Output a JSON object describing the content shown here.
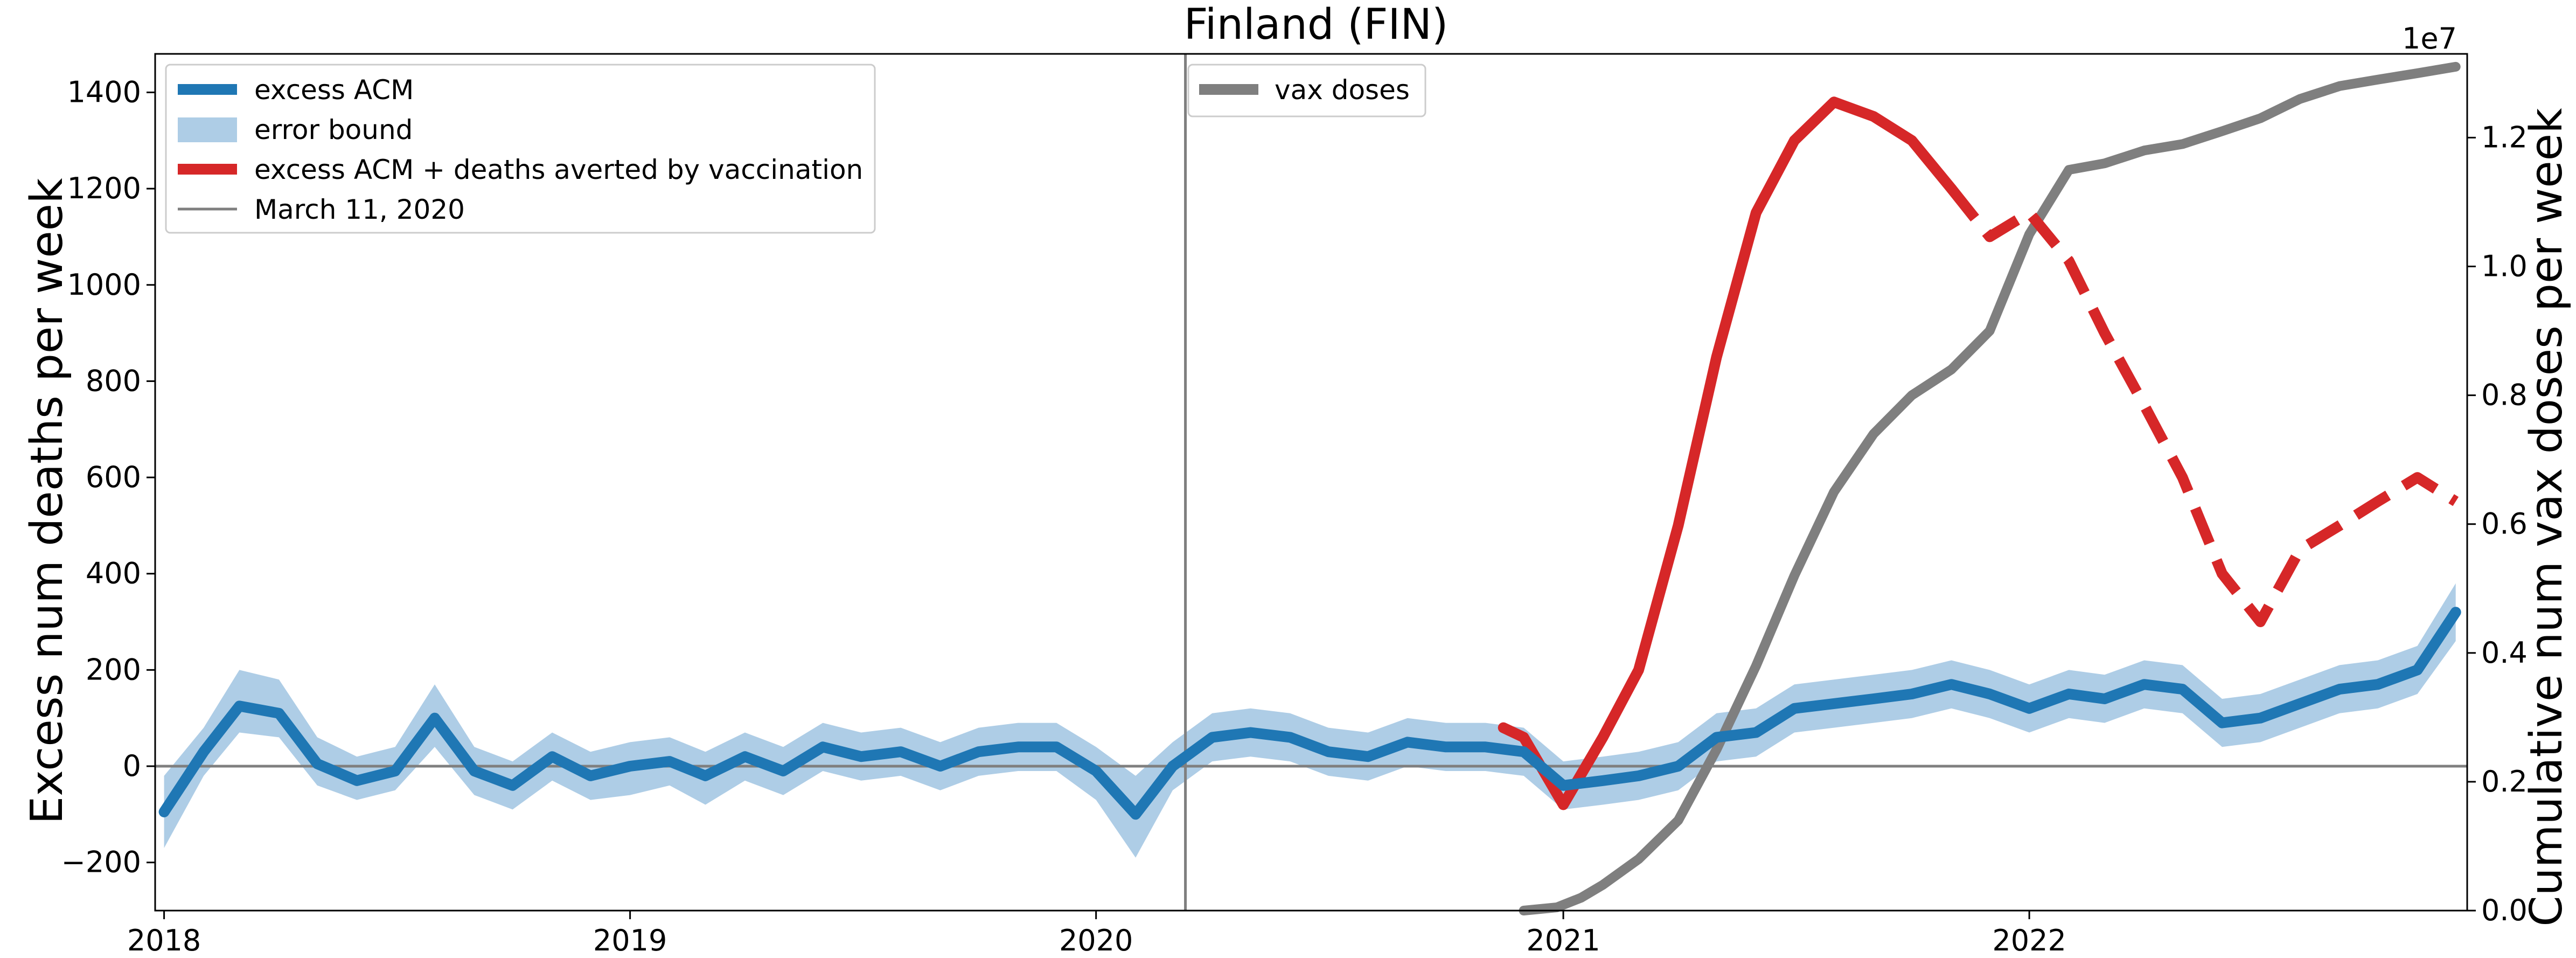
{
  "chart_data": {
    "type": "line",
    "title": "Finland (FIN)",
    "ylabel": "Excess num deaths per week",
    "y2label": "Cumulative num vax doses per week",
    "y2_offset_text": "1e7",
    "ylim": [
      -300,
      1480
    ],
    "y2lim": [
      0,
      1.33
    ],
    "yticks": [
      -200,
      0,
      200,
      400,
      600,
      800,
      1000,
      1200,
      1400
    ],
    "y2ticks": [
      0.0,
      0.2,
      0.4,
      0.6,
      0.8,
      1.0,
      1.2
    ],
    "xlim": [
      "2017-12-25",
      "2022-12-10"
    ],
    "xticks": [
      "2018",
      "2019",
      "2020",
      "2021",
      "2022"
    ],
    "reference_date": "2020-03-11",
    "zero_line": true,
    "legend_left_position": "upper-left",
    "legend_right_position": "upper-center",
    "legend": [
      {
        "label": "excess ACM",
        "kind": "line",
        "color": "#1f77b4"
      },
      {
        "label": "error bound",
        "kind": "band",
        "color": "#aecde6"
      },
      {
        "label": "excess ACM + deaths averted by vaccination",
        "kind": "line",
        "color": "#d62728"
      },
      {
        "label": "March 11, 2020",
        "kind": "thin",
        "color": "#7f7f7f"
      }
    ],
    "legend_vax": {
      "label": "vax doses",
      "kind": "line",
      "color": "#7f7f7f"
    },
    "series": [
      {
        "name": "excess ACM",
        "color": "#1f77b4",
        "x": [
          "2018-01-01",
          "2018-02-01",
          "2018-03-01",
          "2018-04-01",
          "2018-05-01",
          "2018-06-01",
          "2018-07-01",
          "2018-08-01",
          "2018-09-01",
          "2018-10-01",
          "2018-11-01",
          "2018-12-01",
          "2019-01-01",
          "2019-02-01",
          "2019-03-01",
          "2019-04-01",
          "2019-05-01",
          "2019-06-01",
          "2019-07-01",
          "2019-08-01",
          "2019-09-01",
          "2019-10-01",
          "2019-11-01",
          "2019-12-01",
          "2020-01-01",
          "2020-02-01",
          "2020-03-01",
          "2020-04-01",
          "2020-05-01",
          "2020-06-01",
          "2020-07-01",
          "2020-08-01",
          "2020-09-01",
          "2020-10-01",
          "2020-11-01",
          "2020-12-01",
          "2021-01-01",
          "2021-02-01",
          "2021-03-01",
          "2021-04-01",
          "2021-05-01",
          "2021-06-01",
          "2021-07-01",
          "2021-08-01",
          "2021-09-01",
          "2021-10-01",
          "2021-11-01",
          "2021-12-01",
          "2022-01-01",
          "2022-02-01",
          "2022-03-01",
          "2022-04-01",
          "2022-05-01",
          "2022-06-01",
          "2022-07-01",
          "2022-08-01",
          "2022-09-01",
          "2022-10-01",
          "2022-11-01",
          "2022-12-01"
        ],
        "values": [
          -95,
          30,
          125,
          110,
          5,
          -30,
          -10,
          100,
          -10,
          -40,
          20,
          -20,
          0,
          10,
          -20,
          20,
          -10,
          40,
          20,
          30,
          0,
          30,
          40,
          40,
          -10,
          -100,
          0,
          60,
          70,
          60,
          30,
          20,
          50,
          40,
          40,
          30,
          -40,
          -30,
          -20,
          0,
          60,
          70,
          120,
          130,
          140,
          150,
          170,
          150,
          120,
          150,
          140,
          170,
          160,
          90,
          100,
          130,
          160,
          170,
          200,
          320
        ]
      },
      {
        "name": "excess ACM + deaths averted by vaccination",
        "color": "#d62728",
        "x": [
          "2020-11-15",
          "2020-12-01",
          "2021-01-01",
          "2021-02-01",
          "2021-03-01",
          "2021-04-01",
          "2021-05-01",
          "2021-06-01",
          "2021-07-01",
          "2021-08-01",
          "2021-09-01",
          "2021-10-01",
          "2021-11-01",
          "2021-12-01",
          "2022-01-01",
          "2022-02-01",
          "2022-03-01",
          "2022-04-01",
          "2022-05-01",
          "2022-06-01",
          "2022-07-01",
          "2022-08-01",
          "2022-09-01",
          "2022-10-01",
          "2022-11-01",
          "2022-12-01"
        ],
        "values": [
          80,
          60,
          -80,
          60,
          200,
          500,
          850,
          1150,
          1300,
          1380,
          1350,
          1300,
          1200,
          1100,
          1150,
          1050,
          900,
          750,
          600,
          400,
          300,
          450,
          500,
          550,
          600,
          550
        ],
        "dashed_from": "2021-11-10"
      },
      {
        "name": "vax doses",
        "color": "#7f7f7f",
        "axis": "right",
        "x": [
          "2020-12-01",
          "2020-12-27",
          "2021-01-15",
          "2021-02-01",
          "2021-03-01",
          "2021-04-01",
          "2021-05-01",
          "2021-06-01",
          "2021-07-01",
          "2021-08-01",
          "2021-09-01",
          "2021-10-01",
          "2021-11-01",
          "2021-12-01",
          "2022-01-01",
          "2022-02-01",
          "2022-03-01",
          "2022-04-01",
          "2022-05-01",
          "2022-06-01",
          "2022-07-01",
          "2022-08-01",
          "2022-09-01",
          "2022-10-01",
          "2022-11-01",
          "2022-12-01"
        ],
        "values": [
          0.0,
          0.005,
          0.02,
          0.04,
          0.08,
          0.14,
          0.25,
          0.38,
          0.52,
          0.65,
          0.74,
          0.8,
          0.84,
          0.9,
          1.05,
          1.15,
          1.16,
          1.18,
          1.19,
          1.21,
          1.23,
          1.26,
          1.28,
          1.29,
          1.3,
          1.31
        ]
      }
    ],
    "error_band": {
      "name": "error bound",
      "color": "#aecde6",
      "x": [
        "2018-01-01",
        "2018-02-01",
        "2018-03-01",
        "2018-04-01",
        "2018-05-01",
        "2018-06-01",
        "2018-07-01",
        "2018-08-01",
        "2018-09-01",
        "2018-10-01",
        "2018-11-01",
        "2018-12-01",
        "2019-01-01",
        "2019-02-01",
        "2019-03-01",
        "2019-04-01",
        "2019-05-01",
        "2019-06-01",
        "2019-07-01",
        "2019-08-01",
        "2019-09-01",
        "2019-10-01",
        "2019-11-01",
        "2019-12-01",
        "2020-01-01",
        "2020-02-01",
        "2020-03-01",
        "2020-04-01",
        "2020-05-01",
        "2020-06-01",
        "2020-07-01",
        "2020-08-01",
        "2020-09-01",
        "2020-10-01",
        "2020-11-01",
        "2020-12-01",
        "2021-01-01",
        "2021-02-01",
        "2021-03-01",
        "2021-04-01",
        "2021-05-01",
        "2021-06-01",
        "2021-07-01",
        "2021-08-01",
        "2021-09-01",
        "2021-10-01",
        "2021-11-01",
        "2021-12-01",
        "2022-01-01",
        "2022-02-01",
        "2022-03-01",
        "2022-04-01",
        "2022-05-01",
        "2022-06-01",
        "2022-07-01",
        "2022-08-01",
        "2022-09-01",
        "2022-10-01",
        "2022-11-01",
        "2022-12-01"
      ],
      "lower": [
        -170,
        -20,
        70,
        60,
        -40,
        -70,
        -50,
        40,
        -60,
        -90,
        -30,
        -70,
        -60,
        -40,
        -80,
        -30,
        -60,
        -10,
        -30,
        -20,
        -50,
        -20,
        -10,
        -10,
        -70,
        -190,
        -50,
        10,
        20,
        10,
        -20,
        -30,
        0,
        -10,
        -10,
        -20,
        -90,
        -80,
        -70,
        -50,
        10,
        20,
        70,
        80,
        90,
        100,
        120,
        100,
        70,
        100,
        90,
        120,
        110,
        40,
        50,
        80,
        110,
        120,
        150,
        260
      ],
      "upper": [
        -20,
        80,
        200,
        180,
        60,
        20,
        40,
        170,
        40,
        10,
        70,
        30,
        50,
        60,
        30,
        70,
        40,
        90,
        70,
        80,
        50,
        80,
        90,
        90,
        40,
        -20,
        50,
        110,
        120,
        110,
        80,
        70,
        100,
        90,
        90,
        80,
        10,
        20,
        30,
        50,
        110,
        120,
        170,
        180,
        190,
        200,
        220,
        200,
        170,
        200,
        190,
        220,
        210,
        140,
        150,
        180,
        210,
        220,
        250,
        380
      ]
    }
  }
}
